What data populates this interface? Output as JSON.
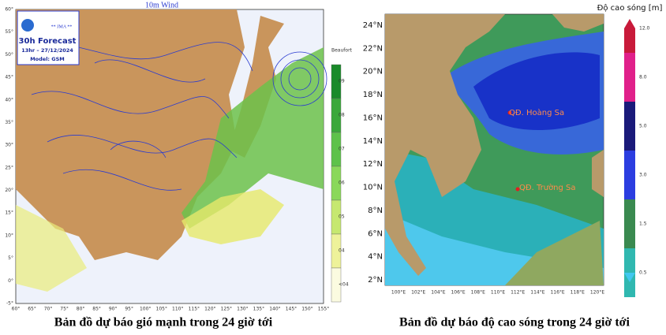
{
  "left_map": {
    "title": "10m Wind",
    "agency": "** JMA **",
    "forecast": "30h Forecast",
    "time": "13hr – 27/12/2024",
    "model": "Model: GSM",
    "scale_title": "Beaufort",
    "scale_labels": [
      "09",
      "08",
      "07",
      "06",
      "05",
      "04",
      "<04"
    ],
    "lat_labels": [
      "60°",
      "55°",
      "50°",
      "45°",
      "40°",
      "35°",
      "30°",
      "25°",
      "20°",
      "15°",
      "10°",
      "5°",
      "0°",
      "-5°"
    ],
    "lon_labels": [
      "60°",
      "65°",
      "70°",
      "75°",
      "80°",
      "85°",
      "90°",
      "95°",
      "100°",
      "105°",
      "110°",
      "115°",
      "120°",
      "125°",
      "130°",
      "135°",
      "140°",
      "145°",
      "150°",
      "155°"
    ],
    "caption": "Bản đồ dự báo gió mạnh trong 24 giờ tới"
  },
  "right_map": {
    "scale_title": "Độ cao sóng [m]",
    "scale_labels": [
      "12.0",
      "8.0",
      "5.0",
      "3.0",
      "1.5",
      "0.5"
    ],
    "lat_labels": [
      "24°N",
      "22°N",
      "20°N",
      "18°N",
      "16°N",
      "14°N",
      "12°N",
      "10°N",
      "8°N",
      "6°N",
      "4°N",
      "2°N"
    ],
    "lon_labels": [
      "100°E",
      "102°E",
      "104°E",
      "106°E",
      "108°E",
      "110°E",
      "112°E",
      "114°E",
      "116°E",
      "118°E",
      "120°E"
    ],
    "places": [
      "QĐ. Hoàng Sa",
      "QĐ. Trường Sa"
    ],
    "caption": "Bản đồ dự báo độ cao sóng trong 24 giờ tới"
  }
}
